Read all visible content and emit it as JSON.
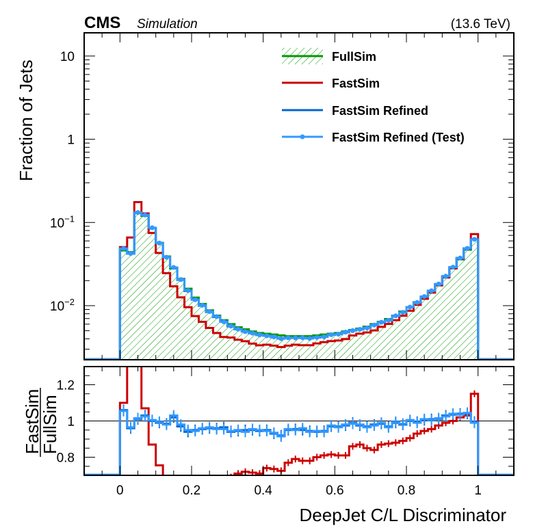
{
  "header": {
    "experiment": "CMS",
    "label": "Simulation",
    "energy": "(13.6 TeV)"
  },
  "colors": {
    "fullsim": "#009900",
    "fastsim": "#cc0000",
    "refined": "#0066cc",
    "refined_test": "#3399ff"
  },
  "chart_data": [
    {
      "type": "histogram",
      "panel": "main",
      "title": "",
      "xlabel": "",
      "ylabel": "Fraction of Jets",
      "yscale": "log",
      "xlim": [
        -0.1,
        1.1
      ],
      "ylim": [
        0.00224,
        19
      ],
      "ytick_labels": [
        {
          "value": 10,
          "label": "10",
          "sup": ""
        },
        {
          "value": 1,
          "label": "1",
          "sup": ""
        },
        {
          "value": 0.1,
          "label": "10",
          "sup": "−1"
        },
        {
          "value": 0.01,
          "label": "10",
          "sup": "−2"
        }
      ],
      "bin_edges_range": [
        0,
        1
      ],
      "n_bins": 50,
      "legend": {
        "placement": "top-right",
        "entries": [
          {
            "label": "FullSim",
            "style": "hatched-fill-line",
            "series": "fullsim"
          },
          {
            "label": "FastSim",
            "style": "line",
            "series": "fastsim"
          },
          {
            "label": "FastSim Refined",
            "style": "line",
            "series": "refined"
          },
          {
            "label": "FastSim Refined (Test)",
            "style": "line-marker",
            "series": "refined_test"
          }
        ]
      },
      "series": [
        {
          "name": "FullSim",
          "key": "fullsim",
          "values": [
            0.046,
            0.044,
            0.13,
            0.12,
            0.086,
            0.057,
            0.039,
            0.028,
            0.021,
            0.016,
            0.0125,
            0.0105,
            0.0088,
            0.0076,
            0.0067,
            0.006,
            0.0055,
            0.0052,
            0.0049,
            0.0047,
            0.0046,
            0.0045,
            0.0044,
            0.0043,
            0.0043,
            0.0043,
            0.0043,
            0.0044,
            0.0045,
            0.0046,
            0.0047,
            0.0049,
            0.0051,
            0.0053,
            0.0056,
            0.006,
            0.0064,
            0.0069,
            0.0076,
            0.0085,
            0.0096,
            0.011,
            0.0128,
            0.015,
            0.018,
            0.022,
            0.028,
            0.036,
            0.047,
            0.063
          ]
        },
        {
          "name": "FastSim",
          "key": "fastsim",
          "values": [
            0.0506,
            0.066,
            0.1755,
            0.1284,
            0.0748,
            0.043,
            0.0246,
            0.0171,
            0.0126,
            0.0096,
            0.0075,
            0.0064,
            0.0054,
            0.0047,
            0.0042,
            0.00414,
            0.0039,
            0.00374,
            0.0035,
            0.00334,
            0.0034,
            0.00331,
            0.00319,
            0.00331,
            0.0034,
            0.00335,
            0.00335,
            0.00352,
            0.00365,
            0.00375,
            0.00381,
            0.00397,
            0.00439,
            0.00461,
            0.00476,
            0.00504,
            0.00557,
            0.00604,
            0.00669,
            0.00757,
            0.00869,
            0.01023,
            0.0121,
            0.01433,
            0.01755,
            0.02178,
            0.028,
            0.03672,
            0.04841,
            0.07245
          ]
        },
        {
          "name": "FastSim Refined",
          "key": "refined",
          "values": [
            0.0488,
            0.0422,
            0.1313,
            0.1236,
            0.086,
            0.0564,
            0.0384,
            0.0286,
            0.0204,
            0.015,
            0.0119,
            0.01,
            0.0084,
            0.0073,
            0.0065,
            0.00564,
            0.0052,
            0.00494,
            0.00466,
            0.00444,
            0.00437,
            0.00419,
            0.00405,
            0.00409,
            0.00411,
            0.00409,
            0.00406,
            0.00414,
            0.00425,
            0.00446,
            0.00456,
            0.00478,
            0.00505,
            0.00517,
            0.00543,
            0.00588,
            0.0063,
            0.00669,
            0.00752,
            0.00833,
            0.0096,
            0.01095,
            0.01286,
            0.01515,
            0.01818,
            0.02266,
            0.02898,
            0.03744,
            0.04888,
            0.06269
          ]
        },
        {
          "name": "FastSim Refined (Test)",
          "key": "refined_test",
          "values": [
            0.0486,
            0.0424,
            0.1317,
            0.1228,
            0.0864,
            0.0566,
            0.0382,
            0.0288,
            0.0206,
            0.0152,
            0.0118,
            0.0101,
            0.0085,
            0.0074,
            0.0064,
            0.00568,
            0.00522,
            0.00488,
            0.00468,
            0.00446,
            0.00434,
            0.00421,
            0.00402,
            0.00411,
            0.00409,
            0.00412,
            0.00404,
            0.00416,
            0.00422,
            0.00448,
            0.00454,
            0.00481,
            0.00502,
            0.0052,
            0.0054,
            0.00585,
            0.00633,
            0.00666,
            0.00755,
            0.0083,
            0.00962,
            0.01093,
            0.01288,
            0.01512,
            0.01821,
            0.02262,
            0.02902,
            0.0374,
            0.04885,
            0.06273
          ]
        }
      ]
    },
    {
      "type": "histogram",
      "panel": "ratio",
      "xlabel": "DeepJet C/L Discriminator",
      "ylabel_num": "FastSim",
      "ylabel_den": "FullSim",
      "xlim": [
        -0.1,
        1.1
      ],
      "ylim": [
        0.7,
        1.3
      ],
      "xtick_labels": [
        "0",
        "0.2",
        "0.4",
        "0.6",
        "0.8",
        "1"
      ],
      "xticks": [
        0,
        0.2,
        0.4,
        0.6,
        0.8,
        1
      ],
      "ytick_labels": [
        "0.8",
        "1",
        "1.2"
      ],
      "yticks": [
        0.8,
        1.0,
        1.2
      ],
      "reference_line": 1.0,
      "n_bins": 50,
      "bin_edges_range": [
        0,
        1
      ],
      "series": [
        {
          "name": "FastSim",
          "key": "fastsim",
          "values": [
            1.1,
            1.5,
            1.35,
            1.07,
            0.87,
            0.755,
            0.63,
            0.61,
            0.6,
            0.6,
            0.6,
            0.61,
            0.61,
            0.62,
            0.63,
            0.69,
            0.71,
            0.72,
            0.715,
            0.71,
            0.74,
            0.735,
            0.725,
            0.77,
            0.79,
            0.78,
            0.78,
            0.8,
            0.81,
            0.815,
            0.81,
            0.81,
            0.86,
            0.87,
            0.85,
            0.84,
            0.87,
            0.875,
            0.88,
            0.89,
            0.905,
            0.93,
            0.945,
            0.955,
            0.975,
            0.99,
            1.0,
            1.02,
            1.03,
            1.15
          ]
        },
        {
          "name": "FastSim Refined",
          "key": "refined",
          "values": [
            1.06,
            0.96,
            1.01,
            1.03,
            1.0,
            0.99,
            0.985,
            1.02,
            0.97,
            0.94,
            0.95,
            0.955,
            0.96,
            0.96,
            0.965,
            0.94,
            0.945,
            0.95,
            0.95,
            0.945,
            0.95,
            0.93,
            0.92,
            0.95,
            0.955,
            0.95,
            0.945,
            0.94,
            0.945,
            0.97,
            0.97,
            0.975,
            0.99,
            0.975,
            0.97,
            0.98,
            0.985,
            0.97,
            0.99,
            0.98,
            1.0,
            0.995,
            1.005,
            1.01,
            1.01,
            1.03,
            1.035,
            1.04,
            1.04,
            0.995
          ]
        },
        {
          "name": "FastSim Refined (Test)",
          "key": "refined_test",
          "values": [
            1.055,
            0.965,
            1.015,
            1.025,
            1.005,
            0.995,
            0.98,
            1.03,
            0.98,
            0.95,
            0.945,
            0.96,
            0.965,
            0.955,
            0.955,
            0.945,
            0.95,
            0.94,
            0.955,
            0.95,
            0.945,
            0.935,
            0.915,
            0.955,
            0.95,
            0.96,
            0.94,
            0.945,
            0.94,
            0.975,
            0.965,
            0.98,
            0.985,
            0.98,
            0.965,
            0.975,
            0.99,
            0.965,
            0.995,
            0.985,
            1.005,
            0.99,
            1.01,
            1.005,
            1.015,
            1.025,
            1.04,
            1.035,
            1.045,
            0.99
          ]
        }
      ]
    }
  ]
}
